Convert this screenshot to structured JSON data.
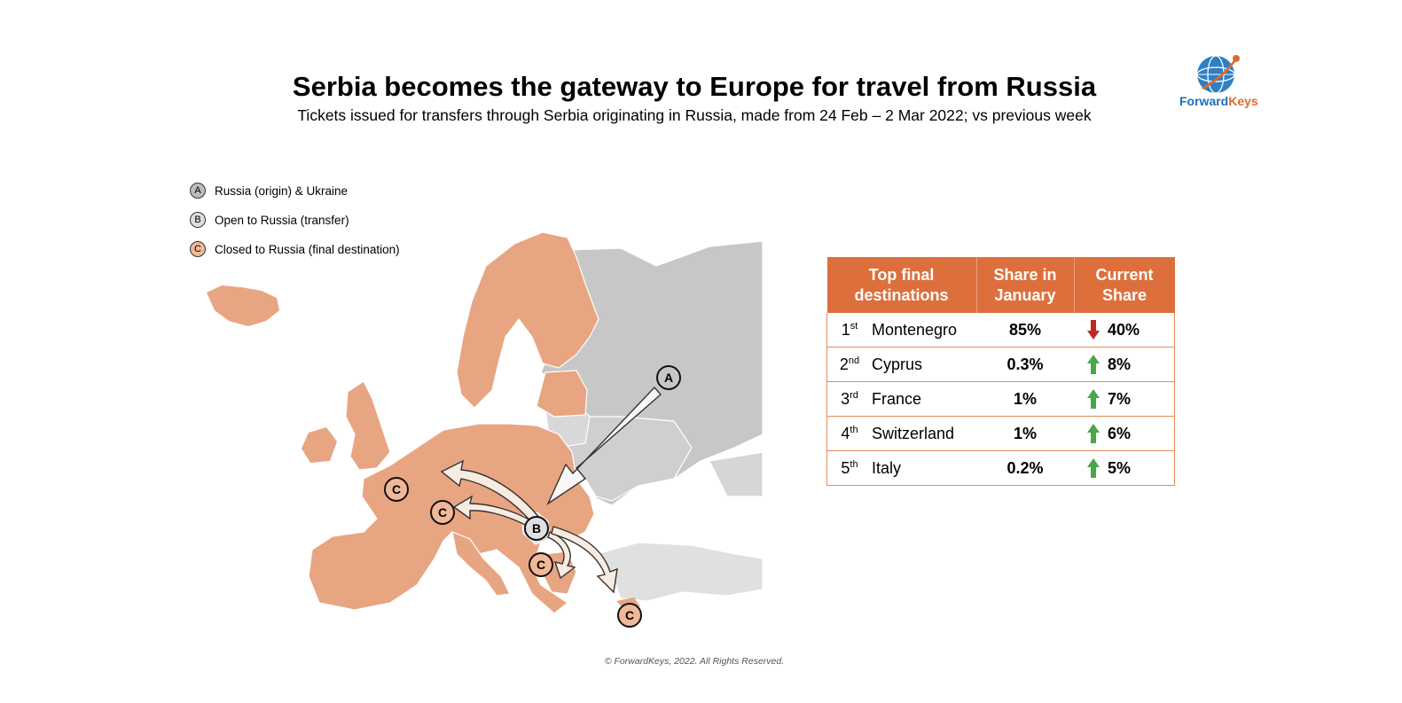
{
  "header": {
    "title": "Serbia becomes the gateway to Europe for travel from Russia",
    "subtitle": "Tickets issued for transfers through Serbia originating in Russia, made from 24 Feb – 2 Mar 2022; vs previous week"
  },
  "logo": {
    "brand_part1": "Forward",
    "brand_part2": "Keys",
    "icon": "globe-icon",
    "colors": {
      "blue": "#1a6fb6",
      "orange": "#e0692d"
    }
  },
  "legend": {
    "items": [
      {
        "letter": "A",
        "label": "Russia (origin) & Ukraine",
        "color": "#bdbdbd"
      },
      {
        "letter": "B",
        "label": "Open to Russia (transfer)",
        "color": "#dedede"
      },
      {
        "letter": "C",
        "label": "Closed to Russia (final destination)",
        "color": "#f0b898"
      }
    ]
  },
  "map": {
    "markers": {
      "a": "A",
      "b": "B",
      "c": "C"
    },
    "colors": {
      "closed": "#e8a582",
      "russia": "#c7c7c7",
      "open": "#e0e0e0",
      "border": "#ffffff"
    }
  },
  "table": {
    "headers": [
      "Top final destinations",
      "Share in January",
      "Current Share"
    ],
    "rows": [
      {
        "rank_num": "1",
        "rank_suffix": "st",
        "country": "Montenegro",
        "share_jan": "85%",
        "current": "40%",
        "trend": "down"
      },
      {
        "rank_num": "2",
        "rank_suffix": "nd",
        "country": "Cyprus",
        "share_jan": "0.3%",
        "current": "8%",
        "trend": "up"
      },
      {
        "rank_num": "3",
        "rank_suffix": "rd",
        "country": "France",
        "share_jan": "1%",
        "current": "7%",
        "trend": "up"
      },
      {
        "rank_num": "4",
        "rank_suffix": "th",
        "country": "Switzerland",
        "share_jan": "1%",
        "current": "6%",
        "trend": "up"
      },
      {
        "rank_num": "5",
        "rank_suffix": "th",
        "country": "Italy",
        "share_jan": "0.2%",
        "current": "5%",
        "trend": "up"
      }
    ],
    "colors": {
      "header_bg": "#dd6f3c",
      "up": "#4aa64a",
      "down": "#c0281e"
    }
  },
  "footer": {
    "copyright": "© ForwardKeys, 2022. All Rights Reserved."
  }
}
